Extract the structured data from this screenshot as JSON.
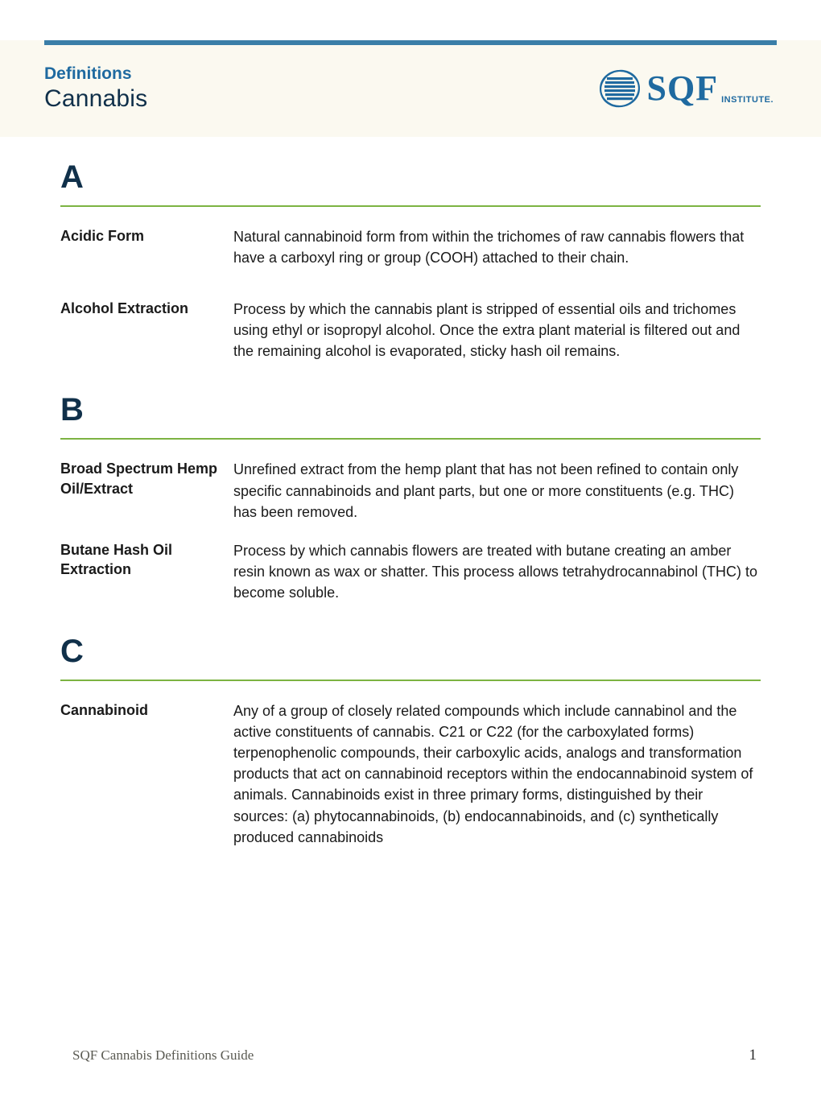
{
  "colors": {
    "top_rule": "#3a7ea8",
    "green_rule": "#7cb342",
    "definitions_label": "#1f6aa0",
    "title": "#10304a",
    "logo": "#1f6aa0"
  },
  "header": {
    "definitions_label": "Definitions",
    "title": "Cannabis",
    "logo_main": "SQF",
    "logo_sub": "INSTITUTE."
  },
  "sections": [
    {
      "letter": "A",
      "entries": [
        {
          "term": "Acidic Form",
          "body": "Natural cannabinoid form from within the trichomes of raw cannabis flowers that have a carboxyl ring or group (COOH) attached to their chain.",
          "tight": false
        },
        {
          "term": "Alcohol Extraction",
          "body": "Process by which the cannabis plant is stripped of essential oils and trichomes using ethyl or isopropyl alcohol. Once the extra plant material is filtered out and the remaining alcohol is evaporated, sticky hash oil remains.",
          "tight": false
        }
      ]
    },
    {
      "letter": "B",
      "entries": [
        {
          "term": "Broad Spectrum Hemp Oil/Extract",
          "body": "Unrefined extract from the hemp plant that has not been refined to contain only specific cannabinoids and plant parts, but one or more constituents (e.g. THC) has been removed.",
          "tight": true
        },
        {
          "term": "Butane Hash Oil Extraction",
          "body": "Process by which cannabis flowers are treated with butane creating an amber resin known as wax or shatter. This process allows tetrahydrocannabinol (THC) to become soluble.",
          "tight": false
        }
      ]
    },
    {
      "letter": "C",
      "entries": [
        {
          "term": "Cannabinoid",
          "body": "Any of a group of closely related compounds which include cannabinol and the active constituents of cannabis. C21 or C22 (for the carboxylated forms) terpenophenolic compounds, their carboxylic acids, analogs and transformation products that act on cannabinoid receptors within the endocannabinoid system of animals. Cannabinoids exist in three primary forms, distinguished by their sources: (a) phytocannabinoids, (b) endocannabinoids, and (c) synthetically produced cannabinoids",
          "tight": false
        }
      ]
    }
  ],
  "footer": {
    "title": "SQF Cannabis Definitions Guide",
    "page": "1"
  }
}
